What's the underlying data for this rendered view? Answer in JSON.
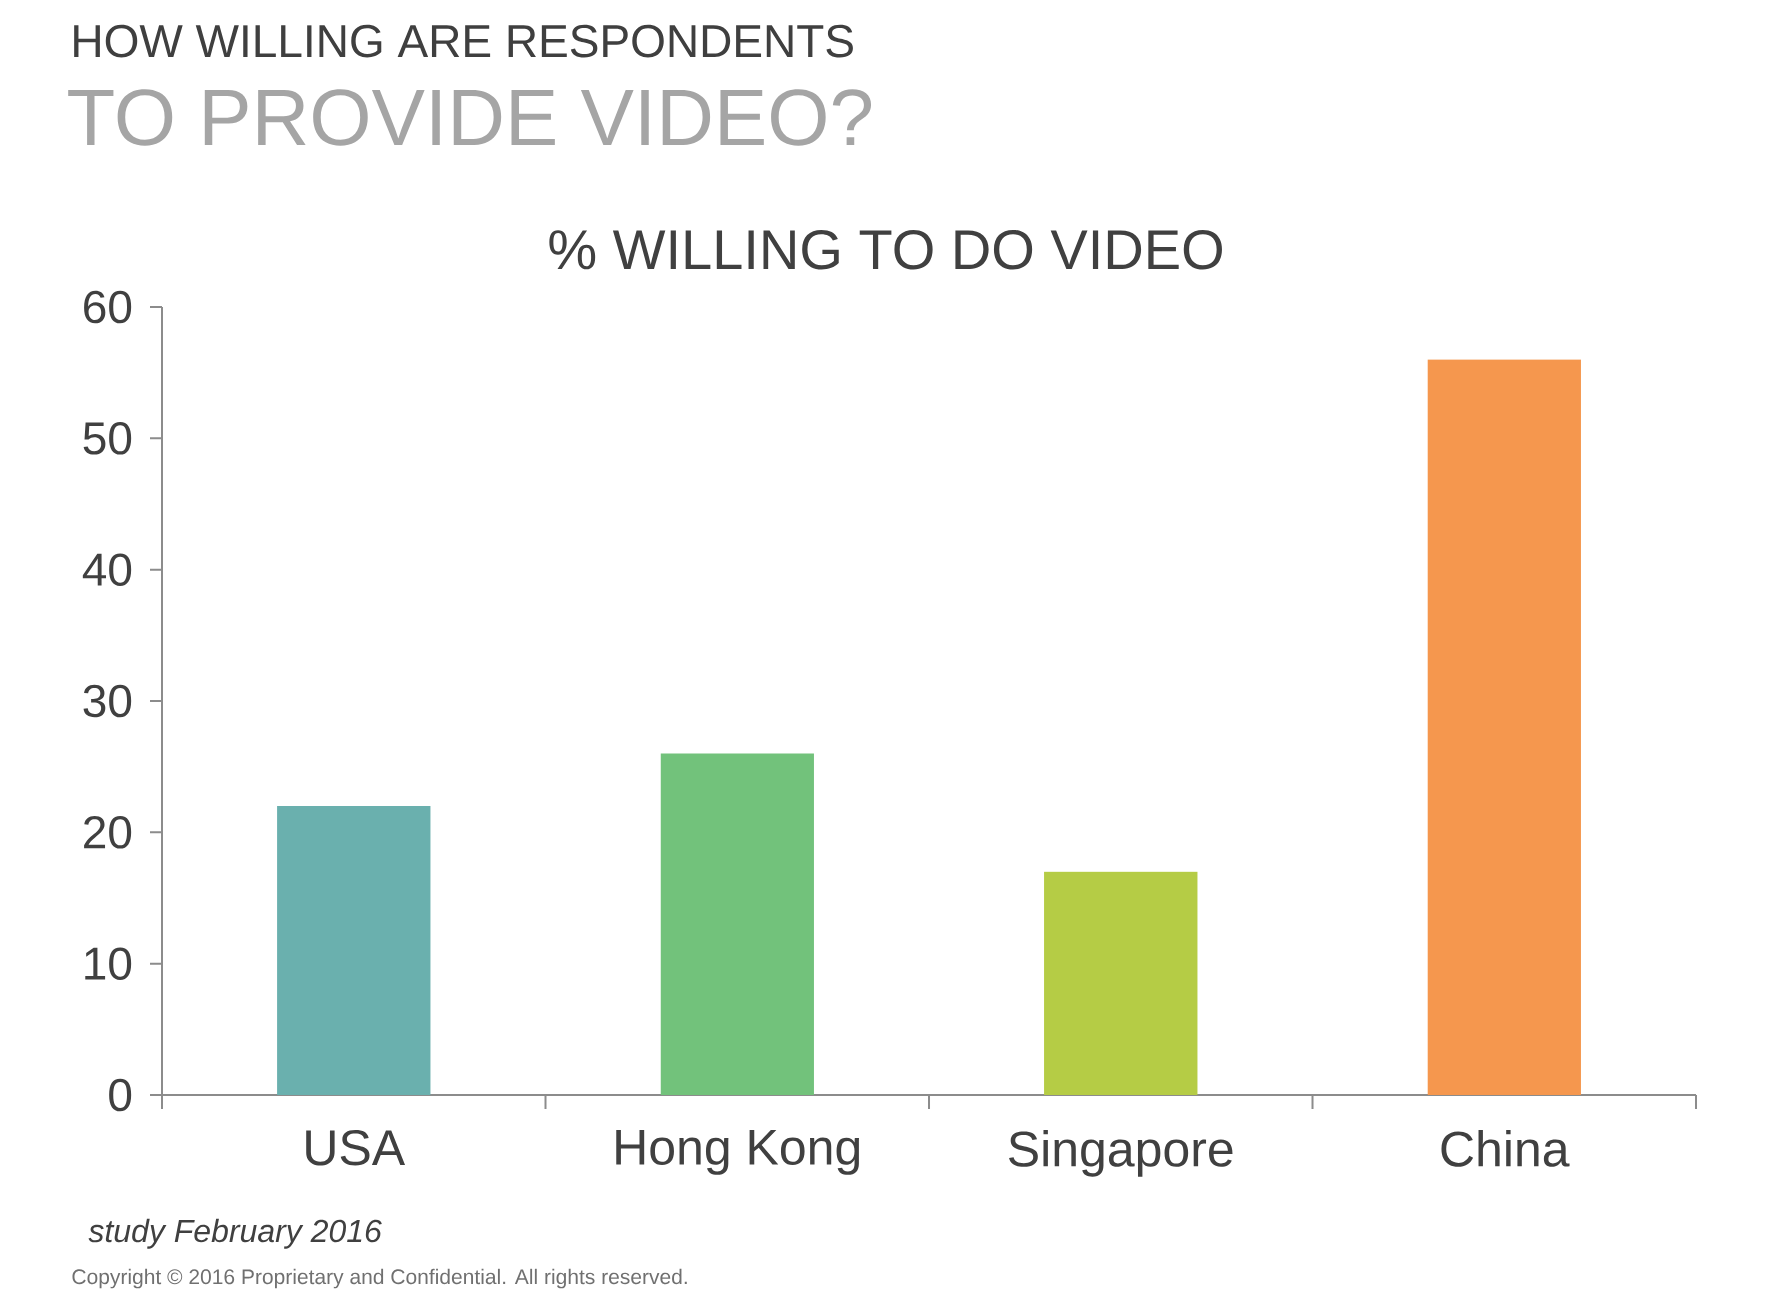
{
  "chart_data": {
    "type": "bar",
    "title": "HOW WILLING ARE RESPONDENTS",
    "subtitle": "TO PROVIDE VIDEO?",
    "ylabel": "% WILLING TO DO VIDEO",
    "categories": [
      "USA",
      "Hong Kong",
      "Singapore",
      "China"
    ],
    "values": [
      22,
      26,
      17,
      56
    ],
    "colors": [
      "#6ab0ae",
      "#72c27b",
      "#b5cc45",
      "#f5974e"
    ],
    "ylim": [
      0,
      60
    ],
    "yticks": [
      0,
      10,
      20,
      30,
      40,
      50,
      60
    ],
    "annotations": [
      "study February 2016",
      "Copyright © 2016 Proprietary and Confidential. All rights reserved."
    ]
  }
}
